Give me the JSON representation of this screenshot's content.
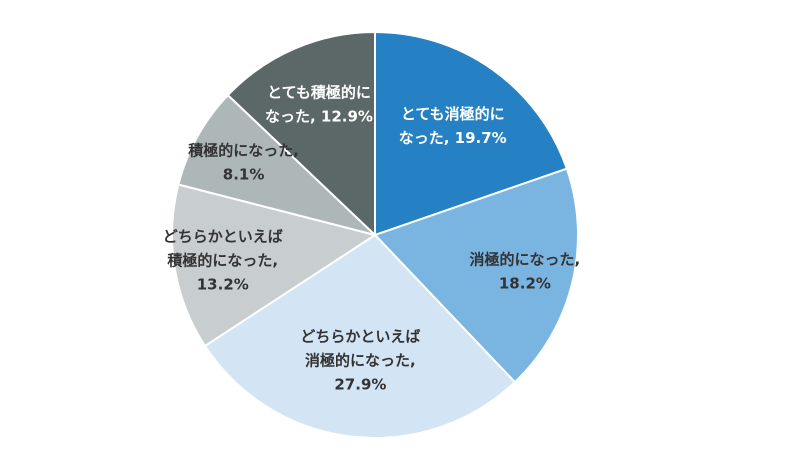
{
  "chart_data": {
    "type": "pie",
    "title": "",
    "start_angle_deg": 0,
    "direction": "clockwise",
    "slices": [
      {
        "label_lines": [
          "とても消極的に",
          "なった, 19.7%"
        ],
        "value": 19.7,
        "color": "#2580C4",
        "text_color": "#FFFFFF"
      },
      {
        "label_lines": [
          "消極的になった,",
          "18.2%"
        ],
        "value": 18.2,
        "color": "#7AB4E1",
        "text_color": "#333333"
      },
      {
        "label_lines": [
          "どちらかといえば",
          "消極的になった,",
          "27.9%"
        ],
        "value": 27.9,
        "color": "#D3E5F4",
        "text_color": "#333333"
      },
      {
        "label_lines": [
          "どちらかといえば",
          "積極的になった,",
          "13.2%"
        ],
        "value": 13.2,
        "color": "#C8CDCF",
        "text_color": "#333333"
      },
      {
        "label_lines": [
          "積極的になった,",
          "8.1%"
        ],
        "value": 8.1,
        "color": "#AEB7B8",
        "text_color": "#333333"
      },
      {
        "label_lines": [
          "とても積極的に",
          "なった, 12.9%"
        ],
        "value": 12.9,
        "color": "#5C6767",
        "text_color": "#FFFFFF"
      }
    ]
  }
}
